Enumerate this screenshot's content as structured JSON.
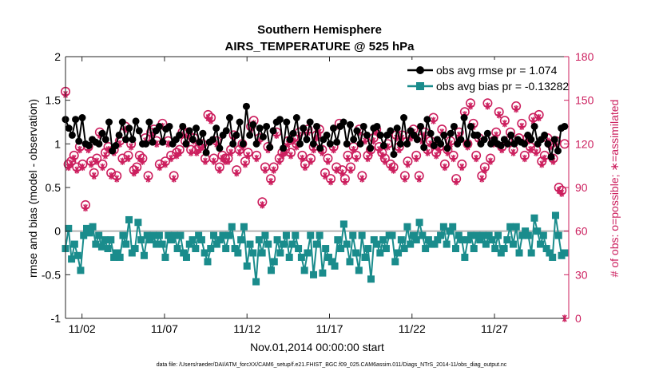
{
  "chart_data": {
    "type": "line",
    "title": "Southern Hemisphere",
    "subtitle": "AIRS_TEMPERATURE @ 525 hPa",
    "xlabel": "Nov.01,2014 00:00:00 start",
    "ylabel_left": "rmse and bias (model - observation)",
    "ylabel_right": "# of obs: o=possible; ∗=assimilated",
    "footer": "data file: /Users/raeder/DAI/ATM_forcXX/CAM6_setup/f.e21.FHIST_BGC.f09_025.CAM6assim.011/Diags_NTrS_2014-11/obs_diag_output.nc",
    "x_ticks": [
      "11/02",
      "11/07",
      "11/12",
      "11/17",
      "11/22",
      "11/27"
    ],
    "x_tick_days": [
      2,
      7,
      12,
      17,
      22,
      27
    ],
    "x_range_days": [
      1,
      31.5
    ],
    "ylim_left": [
      -1,
      2
    ],
    "yticks_left": [
      "-1",
      "-0.5",
      "0",
      "0.5",
      "1",
      "1.5",
      "2"
    ],
    "ylim_right": [
      0,
      180
    ],
    "yticks_right": [
      "0",
      "30",
      "60",
      "90",
      "120",
      "150",
      "180"
    ],
    "legend": [
      "obs avg rmse pr = 1.074",
      "obs avg bias pr = -0.13282"
    ],
    "legend_position": "top-right",
    "colors": {
      "rmse": "#000000",
      "bias": "#1a8c8c",
      "count": "#cc1f5e",
      "zero": "#b3b3b3"
    },
    "series": [
      {
        "name": "obs avg rmse pr",
        "values": [
          1.28,
          1.18,
          1.1,
          1.28,
          1.03,
          1.3,
          1.0,
          0.98,
          1.05,
          1.02,
          1.0,
          1.12,
          1.05,
          1.25,
          0.92,
          0.98,
          1.1,
          1.25,
          1.05,
          1.18,
          1.05,
          1.26,
          1.15,
          1.0,
          1.0,
          1.25,
          1.02,
          1.15,
          1.2,
          1.02,
          1.17,
          1.2,
          1.0,
          1.05,
          1.1,
          1.2,
          1.0,
          1.15,
          1.05,
          1.18,
          1.02,
          1.12,
          0.9,
          1.02,
          1.05,
          1.18,
          0.95,
          1.1,
          1.15,
          1.3,
          1.0,
          1.1,
          1.25,
          1.0,
          1.43,
          1.1,
          1.22,
          1.0,
          1.18,
          1.08,
          1.2,
          0.96,
          1.15,
          1.25,
          1.28,
          0.95,
          1.25,
          1.05,
          1.12,
          1.3,
          1.0,
          1.18,
          1.05,
          1.25,
          1.0,
          1.2,
          0.95,
          1.05,
          1.1,
          1.0,
          1.18,
          1.02,
          1.2,
          1.25,
          1.0,
          1.22,
          1.05,
          1.15,
          1.0,
          1.2,
          1.1,
          0.95,
          1.18,
          1.2,
          1.1,
          0.98,
          1.1,
          1.15,
          0.88,
          1.18,
          1.0,
          1.3,
          1.0,
          1.15,
          1.1,
          1.05,
          1.2,
          0.96,
          1.28,
          1.12,
          0.98,
          1.05,
          1.0,
          1.1,
          0.95,
          1.12,
          1.2,
          1.0,
          1.05,
          1.3,
          1.0,
          1.2,
          1.1,
          1.1,
          1.0,
          1.05,
          1.12,
          1.0,
          1.05,
          1.0,
          0.98,
          1.05,
          1.0,
          1.1,
          1.0,
          1.05,
          1.02,
          1.0,
          1.1,
          1.05,
          1.2,
          1.0,
          1.05,
          1.1,
          1.0,
          0.85,
          1.05,
          0.92,
          1.18,
          1.2
        ]
      },
      {
        "name": "obs avg bias pr",
        "values": [
          -0.2,
          0.03,
          -0.32,
          -0.15,
          -0.28,
          -0.45,
          -0.05,
          0.03,
          -0.02,
          0.05,
          -0.15,
          -0.05,
          -0.18,
          -0.1,
          -0.2,
          -0.1,
          -0.3,
          -0.25,
          -0.3,
          -0.05,
          -0.15,
          0.13,
          -0.25,
          -0.2,
          0.1,
          -0.1,
          -0.28,
          -0.05,
          -0.1,
          -0.05,
          -0.15,
          -0.05,
          -0.15,
          -0.3,
          -0.05,
          -0.1,
          -0.05,
          -0.2,
          -0.05,
          -0.25,
          -0.3,
          -0.15,
          -0.1,
          -0.2,
          -0.05,
          -0.1,
          -0.25,
          -0.35,
          -0.2,
          -0.05,
          -0.15,
          -0.1,
          -0.05,
          -0.2,
          -0.05,
          0.05,
          -0.2,
          -0.25,
          -0.1,
          0.05,
          -0.4,
          -0.15,
          -0.25,
          -0.58,
          -0.1,
          -0.25,
          -0.05,
          -0.15,
          -0.45,
          -0.35,
          -0.1,
          -0.25,
          -0.15,
          -0.05,
          -0.3,
          -0.15,
          -0.05,
          -0.2,
          -0.3,
          -0.45,
          -0.25,
          -0.05,
          -0.5,
          -0.15,
          -0.05,
          -0.48,
          -0.2,
          -0.3,
          -0.35,
          -0.4,
          -0.1,
          -0.2,
          0.08,
          -0.15,
          -0.35,
          -0.05,
          -0.25,
          -0.45,
          -0.05,
          -0.3,
          -0.2,
          -0.55,
          -0.1,
          -0.15,
          -0.25,
          -0.1,
          -0.2,
          -0.05,
          -0.05,
          -0.35,
          -0.25,
          -0.1,
          -0.2,
          0.05,
          -0.15,
          -0.05,
          -0.1,
          0.1,
          -0.05,
          -0.2,
          -0.1,
          -0.15,
          -0.15,
          -0.1,
          -0.05,
          0.05,
          -0.15,
          0.0,
          0.05,
          -0.2,
          -0.05,
          -0.1,
          -0.3,
          -0.1,
          -0.05,
          -0.2,
          -0.05,
          -0.1,
          -0.05,
          -0.15,
          -0.05,
          -0.1,
          -0.2,
          -0.05,
          -0.25,
          -0.2,
          -0.1,
          0.05,
          -0.15,
          0.05,
          -0.25,
          -0.05,
          0.0,
          -0.05,
          -0.25,
          0.15,
          0.0,
          -0.15,
          -0.05,
          -0.2,
          -0.25,
          -0.3,
          0.18,
          -0.05,
          -0.28,
          -0.25
        ]
      },
      {
        "name": "# of obs possible",
        "axis": "right",
        "values": [
          156,
          106,
          108,
          112,
          104,
          118,
          106,
          78,
          118,
          108,
          100,
          110,
          128,
          106,
          114,
          118,
          100,
          116,
          98,
          122,
          110,
          132,
          112,
          120,
          102,
          104,
          112,
          110,
          124,
          98,
          128,
          130,
          122,
          106,
          134,
          108,
          122,
          112,
          98,
          114,
          116,
          128,
          122,
          128,
          116,
          124,
          116,
          118,
          120,
          110,
          140,
          138,
          110,
          122,
          104,
          112,
          110,
          110,
          116,
          126,
          102,
          116,
          120,
          108,
          114,
          132,
          136,
          112,
          124,
          80,
          104,
          118,
          96,
          104,
          128,
          110,
          114,
          116,
          122,
          114,
          124,
          120,
          128,
          112,
          106,
          130,
          110,
          118,
          126,
          130,
          116,
          100,
          110,
          96,
          118,
          104,
          134,
          102,
          96,
          112,
          104,
          118,
          112,
          130,
          98,
          124,
          112,
          116,
          124,
          130,
          118,
          114,
          110,
          120,
          106,
          104,
          126,
          118,
          126,
          98,
          108,
          126,
          130,
          112,
          98,
          124,
          128,
          116,
          122,
          138,
          114,
          118,
          130,
          106,
          116,
          122,
          112,
          96,
          128,
          106,
          142,
          120,
          148,
          134,
          112,
          124,
          98,
          104,
          148,
          110,
          122,
          128,
          142,
          118,
          136,
          122,
          128,
          116,
          146,
          124,
          134,
          112,
          124,
          118,
          138,
          116,
          140,
          108,
          112,
          124,
          120,
          110,
          122,
          90,
          88,
          120
        ]
      },
      {
        "name": "# of obs assimilated",
        "axis": "right",
        "values": [
          154,
          104,
          106,
          110,
          102,
          116,
          104,
          76,
          116,
          106,
          98,
          108,
          126,
          104,
          112,
          116,
          98,
          114,
          96,
          120,
          108,
          130,
          110,
          118,
          100,
          102,
          110,
          108,
          122,
          96,
          126,
          128,
          120,
          104,
          132,
          106,
          120,
          110,
          96,
          112,
          114,
          126,
          120,
          126,
          114,
          122,
          114,
          116,
          118,
          108,
          138,
          136,
          108,
          120,
          102,
          110,
          108,
          108,
          114,
          124,
          100,
          114,
          118,
          106,
          112,
          130,
          134,
          110,
          122,
          78,
          102,
          116,
          94,
          102,
          126,
          108,
          112,
          114,
          120,
          112,
          122,
          118,
          126,
          110,
          104,
          128,
          108,
          116,
          124,
          128,
          114,
          98,
          108,
          94,
          116,
          102,
          132,
          100,
          94,
          110,
          102,
          116,
          110,
          128,
          96,
          122,
          110,
          114,
          122,
          128,
          116,
          112,
          108,
          118,
          104,
          102,
          124,
          116,
          124,
          96,
          106,
          124,
          128,
          110,
          96,
          122,
          126,
          114,
          120,
          136,
          112,
          116,
          128,
          104,
          114,
          120,
          110,
          94,
          126,
          104,
          140,
          118,
          146,
          132,
          110,
          122,
          96,
          102,
          146,
          108,
          120,
          126,
          140,
          116,
          134,
          120,
          126,
          114,
          144,
          122,
          132,
          110,
          122,
          116,
          136,
          114,
          138,
          106,
          110,
          122,
          118,
          108,
          120,
          88,
          86,
          0
        ]
      }
    ]
  }
}
